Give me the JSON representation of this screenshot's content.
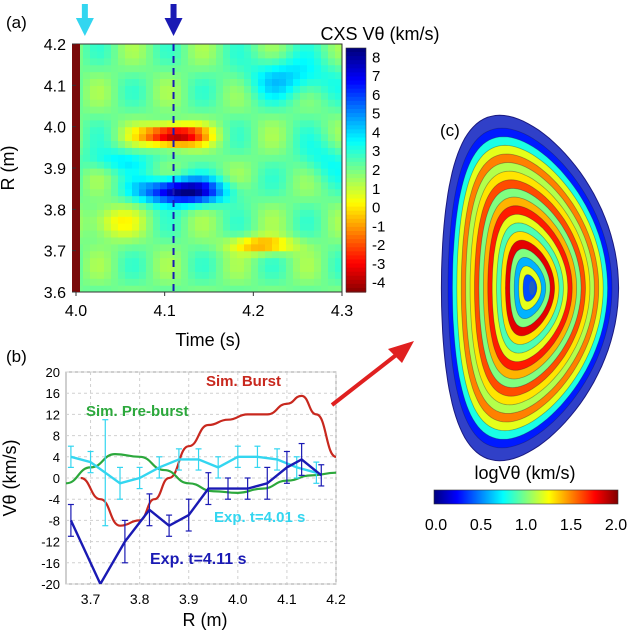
{
  "chart_data": [
    {
      "panel": "(a)",
      "type": "heatmap",
      "title": "CXS Vθ (km/s)",
      "xlabel": "Time (s)",
      "ylabel": "R (m)",
      "xlim": [
        4.0,
        4.3
      ],
      "ylim": [
        3.6,
        4.2
      ],
      "x_ticks": [
        "4.0",
        "4.1",
        "4.2",
        "4.3"
      ],
      "y_ticks": [
        "3.6",
        "3.7",
        "3.8",
        "3.9",
        "4.0",
        "4.1",
        "4.2"
      ],
      "colorbar_ticks": [
        "8",
        "7",
        "6",
        "5",
        "4",
        "3",
        "2",
        "1",
        "0",
        "-1",
        "-2",
        "-3",
        "-4"
      ],
      "colorbar_range": [
        -4.5,
        8.5
      ],
      "markers": [
        {
          "name": "cyan-arrow",
          "time": 4.01,
          "color": "#33d6f0"
        },
        {
          "name": "blue-arrow",
          "time": 4.11,
          "color": "#1a1ab4",
          "dashed_line": true
        }
      ],
      "features": [
        {
          "label": "negative band",
          "time": 4.11,
          "R": 3.98,
          "value": -4
        },
        {
          "label": "positive band",
          "time": 4.11,
          "R": 3.85,
          "value": 8
        },
        {
          "label": "orange spot",
          "time": 4.21,
          "R": 3.71,
          "value": -1.5
        }
      ]
    },
    {
      "panel": "(b)",
      "type": "line",
      "xlabel": "R (m)",
      "ylabel": "Vθ (km/s)",
      "xlim": [
        3.65,
        4.2
      ],
      "ylim": [
        -20,
        20
      ],
      "x_ticks": [
        "3.7",
        "3.8",
        "3.9",
        "4.0",
        "4.1",
        "4.2"
      ],
      "y_ticks": [
        "20",
        "16",
        "12",
        "8",
        "4",
        "0",
        "-4",
        "-8",
        "-12",
        "-16",
        "-20"
      ],
      "series": [
        {
          "name": "Sim. Burst",
          "color": "#c8281e",
          "x": [
            3.68,
            3.72,
            3.76,
            3.8,
            3.83,
            3.86,
            3.9,
            3.94,
            3.98,
            4.02,
            4.06,
            4.1,
            4.13,
            4.16,
            4.2
          ],
          "y": [
            0,
            -4,
            -9,
            -8,
            -4,
            0,
            6,
            10,
            11,
            12,
            12,
            14,
            15.5,
            12,
            4
          ]
        },
        {
          "name": "Sim. Pre-burst",
          "color": "#2ca83c",
          "x": [
            3.65,
            3.7,
            3.75,
            3.8,
            3.85,
            3.9,
            3.95,
            4.0,
            4.05,
            4.1,
            4.15,
            4.2
          ],
          "y": [
            -1,
            2,
            4.5,
            4,
            1.5,
            -1,
            -2.5,
            -2.8,
            -2,
            -0.5,
            0.5,
            1
          ]
        },
        {
          "name": "Exp. t=4.01 s",
          "color": "#33d6f0",
          "x": [
            3.66,
            3.7,
            3.73,
            3.76,
            3.8,
            3.84,
            3.88,
            3.92,
            3.96,
            4.0,
            4.04,
            4.08,
            4.12,
            4.16
          ],
          "y": [
            4,
            3,
            1,
            -1,
            0,
            2,
            3.5,
            3.5,
            2,
            4,
            4,
            3.5,
            2,
            1
          ],
          "err": [
            2,
            2,
            10,
            3,
            2,
            2,
            2,
            2,
            2,
            2,
            2,
            2,
            2,
            2
          ]
        },
        {
          "name": "Exp. t=4.11 s",
          "color": "#1a1ab4",
          "x": [
            3.66,
            3.72,
            3.77,
            3.82,
            3.86,
            3.9,
            3.94,
            3.98,
            4.02,
            4.06,
            4.1,
            4.13,
            4.17
          ],
          "y": [
            -8,
            -20,
            -12,
            -6,
            -9,
            -7,
            -2,
            -2,
            -2,
            -1,
            2,
            3.5,
            0.5
          ],
          "err": [
            3,
            0,
            4,
            3,
            2,
            3,
            3,
            2,
            2,
            3,
            3,
            3,
            2
          ]
        }
      ],
      "labels": {
        "burst": "Sim. Burst",
        "preburst": "Sim. Pre-burst",
        "exp1": "Exp. t=4.01 s",
        "exp2": "Exp. t=4.11 s"
      }
    },
    {
      "panel": "(c)",
      "type": "heatmap",
      "description_label": "logVθ (km/s)",
      "colorbar_ticks": [
        "0.0",
        "0.5",
        "1.0",
        "1.5",
        "2.0"
      ],
      "colorbar_range": [
        0.0,
        2.0
      ],
      "rings": [
        0.3,
        0.8,
        1.2,
        1.5,
        1.1,
        1.3,
        1.6,
        1.0,
        1.4,
        1.7,
        1.2,
        0.9,
        1.3,
        1.8,
        1.0,
        0.6,
        1.2,
        0.4
      ]
    }
  ],
  "panel_labels": {
    "a": "(a)",
    "b": "(b)",
    "c": "(c)"
  }
}
